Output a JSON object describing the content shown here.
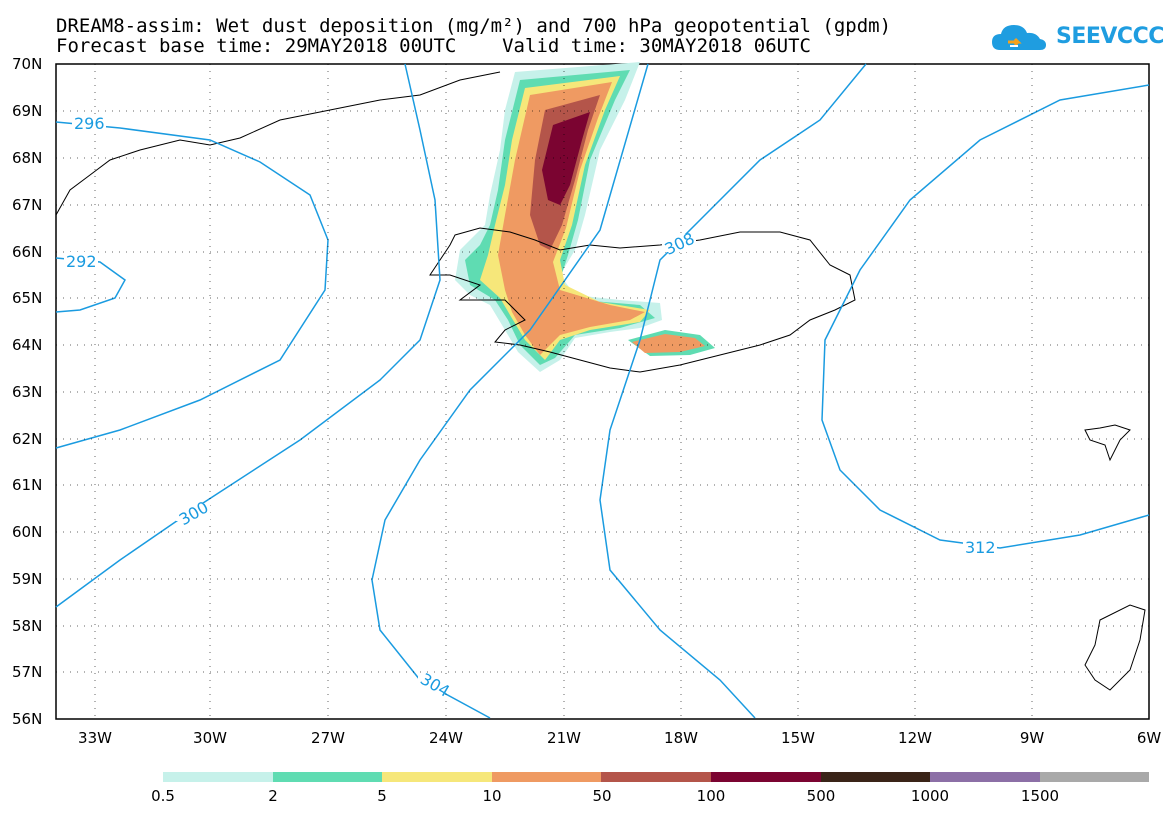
{
  "title_line1": "DREAM8-assim: Wet dust deposition (mg/m²) and 700 hPa geopotential (gpdm)",
  "title_line2": "Forecast base time: 29MAY2018 00UTC    Valid time: 30MAY2018 06UTC",
  "logo_text": "SEEVCCC",
  "lat_labels": [
    "70N",
    "69N",
    "68N",
    "67N",
    "66N",
    "65N",
    "64N",
    "63N",
    "62N",
    "61N",
    "60N",
    "59N",
    "58N",
    "57N",
    "56N"
  ],
  "lon_labels": [
    "33W",
    "30W",
    "27W",
    "24W",
    "21W",
    "18W",
    "15W",
    "12W",
    "9W",
    "6W"
  ],
  "contour_labels": [
    "296",
    "292",
    "300",
    "304",
    "308",
    "312"
  ],
  "legend": {
    "labels": [
      "0.5",
      "2",
      "5",
      "10",
      "50",
      "100",
      "500",
      "1000",
      "1500"
    ],
    "colors": [
      "#c6f1ea",
      "#5fdcb2",
      "#f6e77a",
      "#ef9a62",
      "#b4554a",
      "#7b0431",
      "#3a2418",
      "#8c6fa6",
      "#a9a9a9"
    ]
  },
  "colors": {
    "contour": "#1a9be0",
    "coast": "#000000",
    "brand": "#1f9de0"
  }
}
